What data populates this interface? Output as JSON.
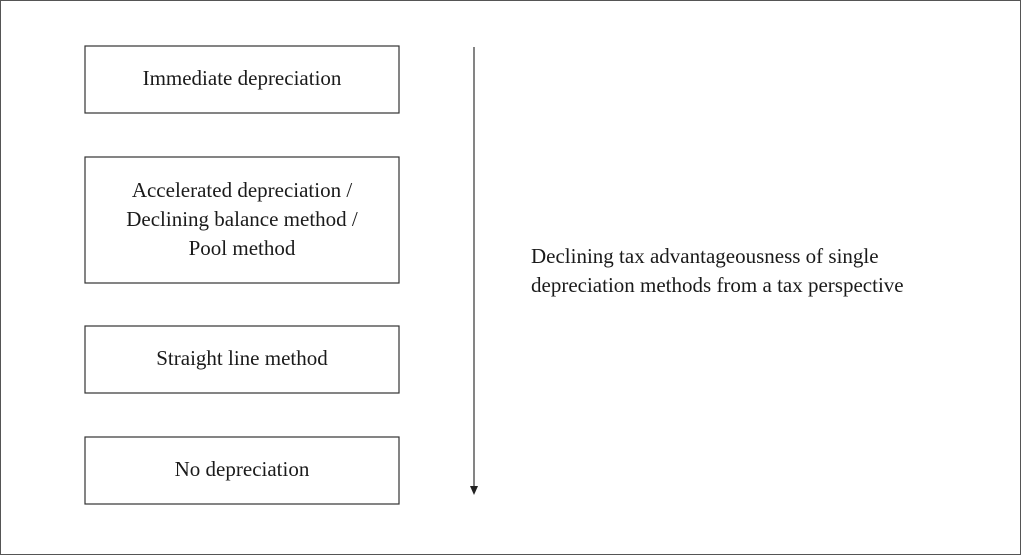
{
  "nodes": [
    {
      "lines": [
        "Immediate depreciation"
      ]
    },
    {
      "lines": [
        "Accelerated depreciation /",
        "Declining balance method /",
        "Pool method"
      ]
    },
    {
      "lines": [
        "Straight line method"
      ]
    },
    {
      "lines": [
        "No depreciation"
      ]
    }
  ],
  "annotation": {
    "lines": [
      "Declining tax advantageousness of single",
      "depreciation methods from a tax perspective"
    ]
  }
}
